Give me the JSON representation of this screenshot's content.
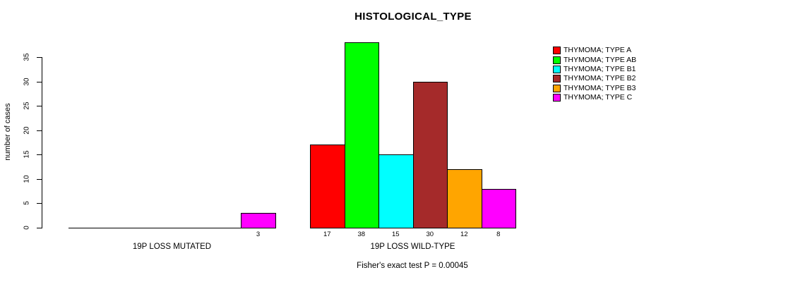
{
  "chart_data": {
    "type": "bar",
    "title": "HISTOLOGICAL_TYPE",
    "ylabel": "number of cases",
    "xlabel": "",
    "categories": [
      "19P LOSS MUTATED",
      "19P LOSS WILD-TYPE"
    ],
    "series": [
      {
        "name": "THYMOMA; TYPE A",
        "color": "#FF0000",
        "values": [
          0,
          17
        ]
      },
      {
        "name": "THYMOMA; TYPE AB",
        "color": "#00FF00",
        "values": [
          0,
          38
        ]
      },
      {
        "name": "THYMOMA; TYPE B1",
        "color": "#00FFFF",
        "values": [
          0,
          15
        ]
      },
      {
        "name": "THYMOMA; TYPE B2",
        "color": "#A52A2A",
        "values": [
          0,
          30
        ]
      },
      {
        "name": "THYMOMA; TYPE B3",
        "color": "#FFA500",
        "values": [
          0,
          12
        ]
      },
      {
        "name": "THYMOMA; TYPE C",
        "color": "#FF00FF",
        "values": [
          3,
          8
        ]
      }
    ],
    "yticks": [
      0,
      5,
      10,
      15,
      20,
      25,
      30,
      35
    ],
    "ylim": [
      0,
      38
    ],
    "grid": false,
    "legend_position": "right",
    "bar_value_labels": [
      [
        null,
        null,
        null,
        null,
        null,
        3
      ],
      [
        17,
        38,
        15,
        30,
        12,
        8
      ]
    ],
    "annotation": "Fisher's exact test P = 0.00045"
  }
}
